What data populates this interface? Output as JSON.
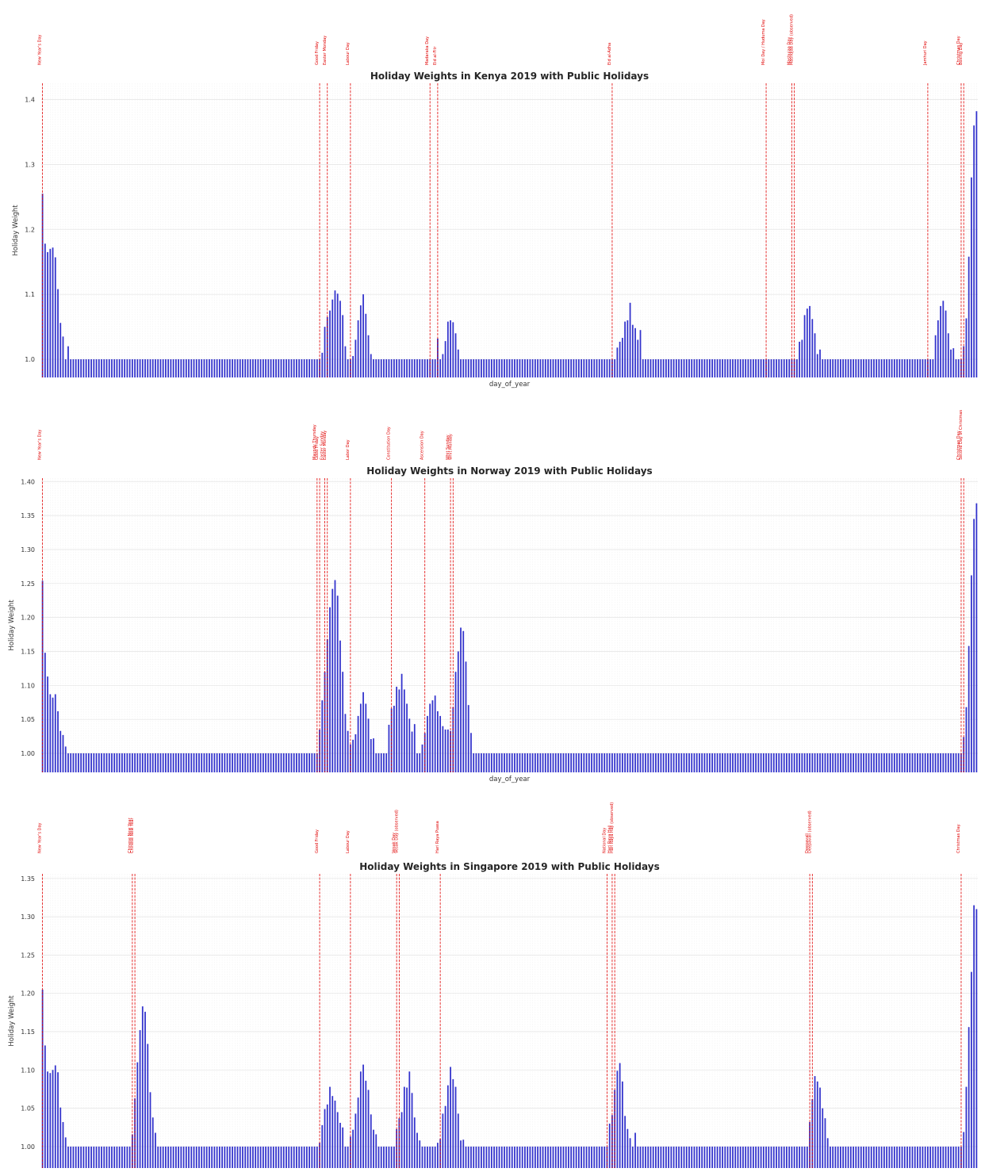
{
  "colors": {
    "bar": "#3333cc",
    "holiday_line": "#e00000",
    "grid_major": "#e3e3e3",
    "grid_minor": "#efefef"
  },
  "chart_data": [
    {
      "type": "bar",
      "title": "Holiday Weights in Kenya 2019 with Public Holidays",
      "xlabel": "day_of_year",
      "ylabel": "Holiday Weight",
      "x_range": [
        1,
        365
      ],
      "ylim": [
        0.972,
        1.425
      ],
      "yticks": [
        1.0,
        1.1,
        1.2,
        1.3,
        1.4
      ],
      "ytick_labels": [
        "1.0",
        "1.1",
        "1.2",
        "1.3",
        "1.4"
      ],
      "grid": true,
      "baseline": 1.0,
      "bumps": [
        {
          "start": 1,
          "values": [
            1.255,
            1.178,
            1.165,
            1.17,
            1.172,
            1.157,
            1.108,
            1.056,
            1.035,
            1.0,
            1.02
          ]
        },
        {
          "start": 110,
          "values": [
            1.01,
            1.05,
            1.065,
            1.075,
            1.092,
            1.106,
            1.101,
            1.09,
            1.068,
            1.02,
            1.0,
            1.0,
            1.005,
            1.03,
            1.06,
            1.083,
            1.1,
            1.07,
            1.037,
            1.008
          ]
        },
        {
          "start": 155,
          "values": [
            1.032,
            1.0,
            1.008,
            1.028,
            1.058,
            1.06,
            1.057,
            1.04,
            1.015
          ]
        },
        {
          "start": 225,
          "values": [
            1.018,
            1.027,
            1.033,
            1.058,
            1.06,
            1.087,
            1.053,
            1.048,
            1.03,
            1.045
          ]
        },
        {
          "start": 296,
          "values": [
            1.027,
            1.03,
            1.068,
            1.078,
            1.082,
            1.062,
            1.04,
            1.008,
            1.015
          ]
        },
        {
          "start": 349,
          "values": [
            1.037,
            1.06,
            1.082,
            1.09,
            1.075,
            1.04,
            1.015,
            1.017,
            1.0,
            1.0,
            1.0,
            1.02,
            1.063,
            1.158,
            1.28,
            1.36,
            1.382,
            1.314
          ]
        }
      ],
      "holidays": [
        {
          "name": "New Year's Day",
          "day": 1
        },
        {
          "name": "Good Friday",
          "day": 109
        },
        {
          "name": "Easter Monday",
          "day": 112
        },
        {
          "name": "Labour Day",
          "day": 121
        },
        {
          "name": "Madaraka Day",
          "day": 152
        },
        {
          "name": "Eid al-Fitr",
          "day": 155
        },
        {
          "name": "Eid al-Adha",
          "day": 223
        },
        {
          "name": "Moi Day / Huduma Day",
          "day": 283
        },
        {
          "name": "Mashujaa Day",
          "day": 293
        },
        {
          "name": "Mashujaa Day (observed)",
          "day": 294
        },
        {
          "name": "Jamhuri Day",
          "day": 346
        },
        {
          "name": "Christmas Day",
          "day": 359
        },
        {
          "name": "Boxing Day",
          "day": 360
        }
      ]
    },
    {
      "type": "bar",
      "title": "Holiday Weights in Norway 2019 with Public Holidays",
      "xlabel": "day_of_year",
      "ylabel": "Holiday Weight",
      "x_range": [
        1,
        365
      ],
      "ylim": [
        0.972,
        1.405
      ],
      "yticks": [
        1.0,
        1.05,
        1.1,
        1.15,
        1.2,
        1.25,
        1.3,
        1.35,
        1.4
      ],
      "ytick_labels": [
        "1.00",
        "1.05",
        "1.10",
        "1.15",
        "1.20",
        "1.25",
        "1.30",
        "1.35",
        "1.40"
      ],
      "grid": true,
      "baseline": 1.0,
      "bumps": [
        {
          "start": 1,
          "values": [
            1.254,
            1.148,
            1.113,
            1.087,
            1.082,
            1.087,
            1.062,
            1.033,
            1.027,
            1.01
          ]
        },
        {
          "start": 109,
          "values": [
            1.035,
            1.078,
            1.12,
            1.168,
            1.215,
            1.242,
            1.255,
            1.232,
            1.166,
            1.12,
            1.058,
            1.033,
            1.013,
            1.02,
            1.028,
            1.055,
            1.073,
            1.09,
            1.073,
            1.051,
            1.021,
            1.022
          ]
        },
        {
          "start": 136,
          "values": [
            1.042,
            1.066,
            1.07,
            1.098,
            1.094,
            1.117,
            1.094,
            1.073,
            1.051,
            1.032,
            1.043,
            1.0,
            1.0,
            1.013,
            1.03,
            1.055,
            1.073,
            1.078,
            1.085,
            1.062,
            1.055,
            1.04,
            1.035,
            1.035,
            1.033,
            1.068,
            1.12,
            1.15,
            1.185,
            1.18,
            1.135,
            1.071,
            1.03
          ]
        },
        {
          "start": 360,
          "values": [
            1.024,
            1.068,
            1.158,
            1.262,
            1.345,
            1.368,
            1.308
          ]
        }
      ],
      "holidays": [
        {
          "name": "New Year's Day",
          "day": 1
        },
        {
          "name": "Maundy Thursday",
          "day": 108
        },
        {
          "name": "Good Friday",
          "day": 109
        },
        {
          "name": "Easter Sunday",
          "day": 111
        },
        {
          "name": "Easter Monday",
          "day": 112
        },
        {
          "name": "Labor Day",
          "day": 121
        },
        {
          "name": "Constitution Day",
          "day": 137
        },
        {
          "name": "Ascension Day",
          "day": 150
        },
        {
          "name": "Whit Sunday",
          "day": 160
        },
        {
          "name": "Whit Monday",
          "day": 161
        },
        {
          "name": "Christmas Day",
          "day": 359
        },
        {
          "name": "Second Day of Christmas",
          "day": 360
        }
      ]
    },
    {
      "type": "bar",
      "title": "Holiday Weights in Singapore 2019 with Public Holidays",
      "xlabel": "",
      "ylabel": "Holiday Weight",
      "x_range": [
        1,
        365
      ],
      "ylim": [
        0.972,
        1.356
      ],
      "yticks": [
        1.0,
        1.05,
        1.1,
        1.15,
        1.2,
        1.25,
        1.3,
        1.35
      ],
      "ytick_labels": [
        "1.00",
        "1.05",
        "1.10",
        "1.15",
        "1.20",
        "1.25",
        "1.30",
        "1.35"
      ],
      "grid": true,
      "baseline": 1.0,
      "bumps": [
        {
          "start": 1,
          "values": [
            1.205,
            1.132,
            1.098,
            1.096,
            1.1,
            1.106,
            1.097,
            1.051,
            1.032,
            1.012
          ]
        },
        {
          "start": 36,
          "values": [
            1.016,
            1.063,
            1.11,
            1.152,
            1.183,
            1.176,
            1.134,
            1.071,
            1.038,
            1.018
          ]
        },
        {
          "start": 109,
          "values": [
            1.005,
            1.028,
            1.049,
            1.055,
            1.078,
            1.066,
            1.06,
            1.045,
            1.031,
            1.025,
            1.0,
            1.0,
            1.013,
            1.022,
            1.043,
            1.064,
            1.098,
            1.107,
            1.086,
            1.074,
            1.042,
            1.022,
            1.016
          ]
        },
        {
          "start": 139,
          "values": [
            1.023,
            1.037,
            1.045,
            1.078,
            1.077,
            1.098,
            1.07,
            1.038,
            1.018,
            1.008,
            1.0,
            1.0,
            1.0,
            1.0,
            1.0,
            1.0,
            1.005,
            1.01,
            1.043,
            1.053,
            1.08,
            1.104,
            1.088,
            1.078,
            1.043,
            1.008,
            1.009
          ]
        },
        {
          "start": 222,
          "values": [
            1.03,
            1.041,
            1.074,
            1.099,
            1.109,
            1.085,
            1.04,
            1.023,
            1.011,
            1.0,
            1.018
          ]
        },
        {
          "start": 300,
          "values": [
            1.032,
            1.062,
            1.092,
            1.085,
            1.077,
            1.05,
            1.037,
            1.011
          ]
        },
        {
          "start": 360,
          "values": [
            1.019,
            1.078,
            1.156,
            1.228,
            1.315,
            1.31,
            1.249
          ]
        }
      ],
      "holidays": [
        {
          "name": "New Year's Day",
          "day": 1
        },
        {
          "name": "Chinese New Year",
          "day": 36
        },
        {
          "name": "Chinese New Year",
          "day": 37
        },
        {
          "name": "Good Friday",
          "day": 109
        },
        {
          "name": "Labour Day",
          "day": 121
        },
        {
          "name": "Vesak Day",
          "day": 139
        },
        {
          "name": "Vesak Day (observed)",
          "day": 140
        },
        {
          "name": "Hari Raya Puasa",
          "day": 156
        },
        {
          "name": "National Day",
          "day": 221
        },
        {
          "name": "Hari Raya Haji",
          "day": 223
        },
        {
          "name": "Hari Raya Haji (observed)",
          "day": 224
        },
        {
          "name": "Deepavali",
          "day": 300
        },
        {
          "name": "Deepavali (observed)",
          "day": 301
        },
        {
          "name": "Christmas Day",
          "day": 359
        }
      ]
    }
  ]
}
